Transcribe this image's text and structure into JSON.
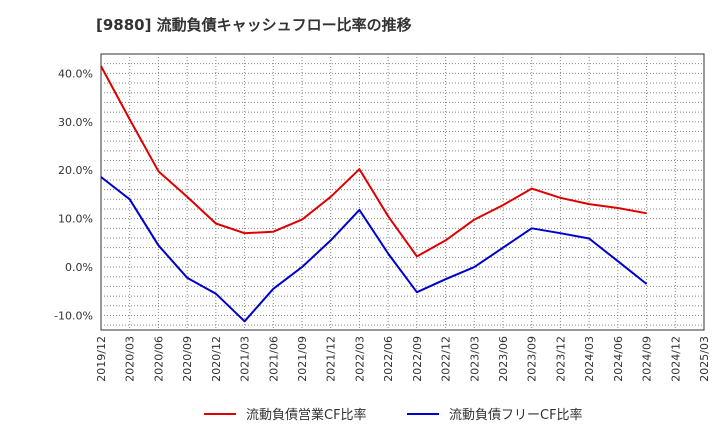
{
  "chart_data": {
    "type": "line",
    "title": "[9880]  流動負債キャッシュフロー比率の推移",
    "xlabel": "",
    "ylabel": "",
    "ylim": [
      -13,
      44
    ],
    "yticks": [
      40,
      30,
      20,
      10,
      0,
      -10
    ],
    "ytick_labels": [
      "40.0%",
      "30.0%",
      "20.0%",
      "10.0%",
      "0.0%",
      "-10.0%"
    ],
    "x_tick_labels": [
      "2019/12",
      "2020/03",
      "2020/06",
      "2020/09",
      "2020/12",
      "2021/03",
      "2021/06",
      "2021/09",
      "2021/12",
      "2022/03",
      "2022/06",
      "2022/09",
      "2022/12",
      "2023/03",
      "2023/06",
      "2023/09",
      "2023/12",
      "2024/03",
      "2024/06",
      "2024/09",
      "2024/12",
      "2025/03"
    ],
    "x": [
      "2019/12",
      "2020/03",
      "2020/06",
      "2020/09",
      "2020/12",
      "2021/03",
      "2021/06",
      "2021/09",
      "2021/12",
      "2022/03",
      "2022/06",
      "2022/09",
      "2022/12",
      "2023/03",
      "2023/06",
      "2023/09",
      "2023/12",
      "2024/03",
      "2024/06",
      "2024/09"
    ],
    "series": [
      {
        "name": "流動負債営業CF比率",
        "color": "#dd0000",
        "values": [
          41.5,
          30.5,
          19.8,
          14.5,
          9.0,
          7.0,
          7.3,
          9.8,
          14.5,
          20.2,
          10.5,
          2.2,
          5.5,
          9.8,
          12.8,
          16.2,
          14.3,
          13.0,
          12.2,
          11.1
        ]
      },
      {
        "name": "流動負債フリーCF比率",
        "color": "#0000cc",
        "values": [
          18.6,
          14.0,
          4.5,
          -2.2,
          -5.5,
          -11.2,
          -4.5,
          0.0,
          5.5,
          11.8,
          2.8,
          -5.2,
          -2.5,
          0.0,
          4.0,
          8.0,
          7.0,
          5.9,
          1.2,
          -3.5
        ]
      }
    ],
    "grid": true,
    "legend_position": "bottom"
  }
}
